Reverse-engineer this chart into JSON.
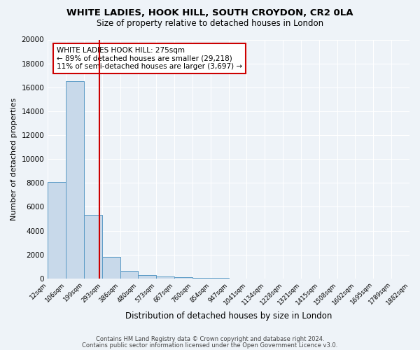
{
  "title": "WHITE LADIES, HOOK HILL, SOUTH CROYDON, CR2 0LA",
  "subtitle": "Size of property relative to detached houses in London",
  "xlabel": "Distribution of detached houses by size in London",
  "ylabel": "Number of detached properties",
  "bin_edges": [
    "12sqm",
    "106sqm",
    "199sqm",
    "293sqm",
    "386sqm",
    "480sqm",
    "573sqm",
    "667sqm",
    "760sqm",
    "854sqm",
    "947sqm",
    "1041sqm",
    "1134sqm",
    "1228sqm",
    "1321sqm",
    "1415sqm",
    "1508sqm",
    "1602sqm",
    "1695sqm",
    "1789sqm",
    "1882sqm"
  ],
  "bar_values": [
    8100,
    16500,
    5300,
    1800,
    650,
    300,
    175,
    100,
    75,
    50,
    0,
    0,
    0,
    0,
    0,
    0,
    0,
    0,
    0,
    0
  ],
  "bar_color": "#c8d9ea",
  "bar_edge_color": "#5a9ac5",
  "red_line_x": 2.85,
  "red_line_label": "WHITE LADIES HOOK HILL: 275sqm",
  "annotation_line1": "← 89% of detached houses are smaller (29,218)",
  "annotation_line2": "11% of semi-detached houses are larger (3,697) →",
  "ylim": [
    0,
    20000
  ],
  "yticks": [
    0,
    2000,
    4000,
    6000,
    8000,
    10000,
    12000,
    14000,
    16000,
    18000,
    20000
  ],
  "footer1": "Contains HM Land Registry data © Crown copyright and database right 2024.",
  "footer2": "Contains public sector information licensed under the Open Government Licence v3.0.",
  "bg_color": "#eef3f8",
  "box_color": "#ffffff"
}
